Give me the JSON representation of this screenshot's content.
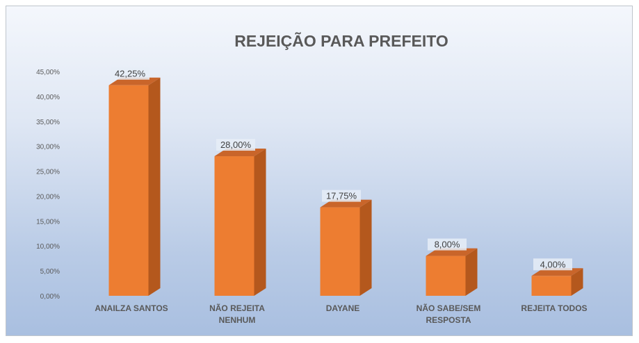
{
  "chart_data": {
    "type": "bar",
    "title": "REJEIÇÃO PARA PREFEITO",
    "categories": [
      [
        "ANAILZA SANTOS"
      ],
      [
        "NÃO REJEITA",
        "NENHUM"
      ],
      [
        "DAYANE"
      ],
      [
        "NÃO SABE/SEM",
        "RESPOSTA"
      ],
      [
        "REJEITA TODOS"
      ]
    ],
    "values": [
      42.25,
      28.0,
      17.75,
      8.0,
      4.0
    ],
    "data_labels": [
      "42,25%",
      "28,00%",
      "17,75%",
      "8,00%",
      "4,00%"
    ],
    "ylim": [
      0,
      45
    ],
    "yticks": [
      0,
      5,
      10,
      15,
      20,
      25,
      30,
      35,
      40,
      45
    ],
    "ytick_labels": [
      "0,00%",
      "5,00%",
      "10,00%",
      "15,00%",
      "20,00%",
      "25,00%",
      "30,00%",
      "35,00%",
      "40,00%",
      "45,00%"
    ],
    "xlabel": "",
    "ylabel": "",
    "grid": false,
    "legend": "none",
    "style": "3d-column",
    "colors": {
      "bar_front": "#ed7d31",
      "bar_side": "#b4581d",
      "bar_top": "#c9652a",
      "label_bg": "#e6edf7"
    }
  }
}
